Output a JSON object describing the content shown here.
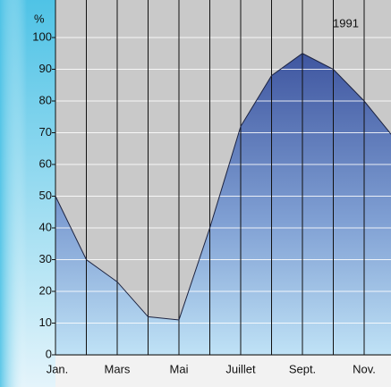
{
  "chart_data": {
    "type": "area",
    "y_label": "%",
    "annotation": "1991",
    "categories": [
      "Jan.",
      null,
      "Mars",
      null,
      "Mai",
      null,
      "Juillet",
      null,
      "Sept.",
      null,
      "Nov.",
      null
    ],
    "values": [
      50,
      30,
      23,
      12,
      11,
      40,
      72,
      88,
      95,
      90,
      80,
      68
    ],
    "color": "#4a62a8",
    "ylim": [
      0,
      100
    ],
    "yticks": [
      0,
      10,
      20,
      30,
      40,
      50,
      60,
      70,
      80,
      90,
      100
    ],
    "grid": true
  }
}
